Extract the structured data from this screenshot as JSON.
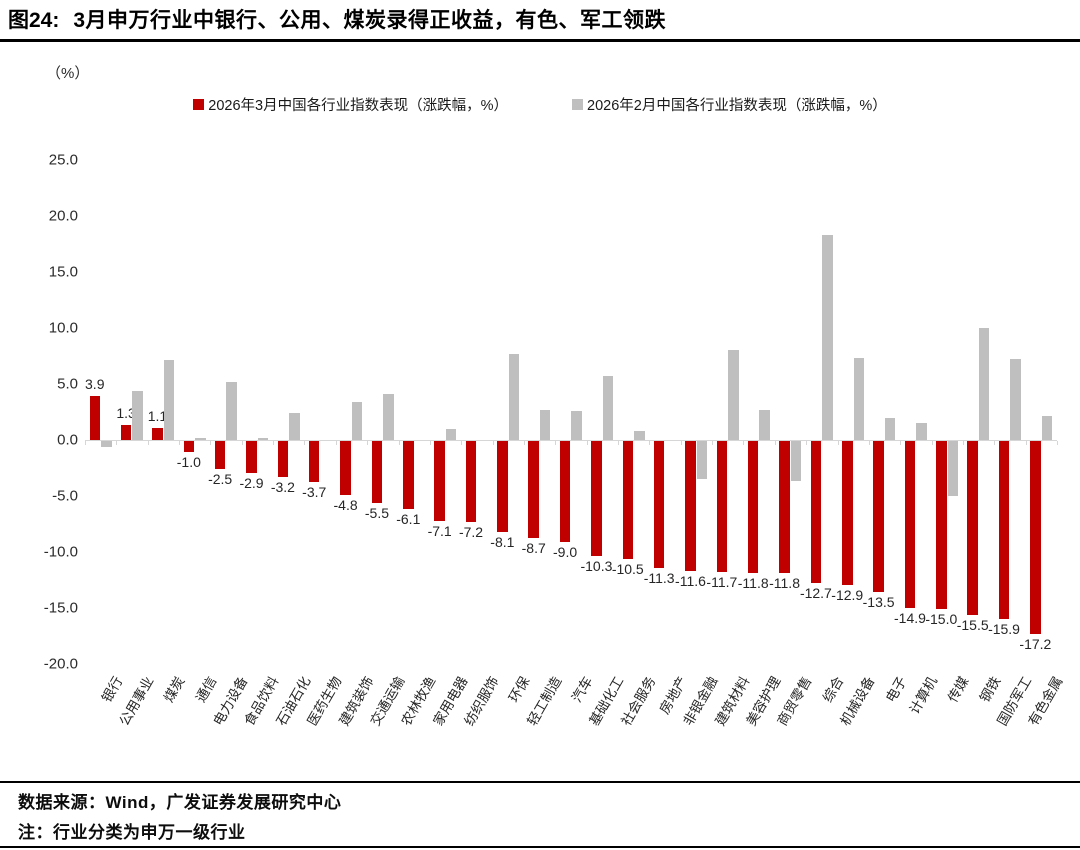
{
  "header": {
    "figure_label": "图24:",
    "title": "3月申万行业中银行、公用、煤炭录得正收益，有色、军工领跌"
  },
  "chart_data": {
    "type": "bar",
    "unit_label": "（%）",
    "title": "3月申万行业中银行、公用、煤炭录得正收益，有色、军工领跌",
    "legend_position": "top",
    "grid": false,
    "ylim": [
      -20,
      25
    ],
    "y_tick_labels": [
      "25.0",
      "20.0",
      "15.0",
      "10.0",
      "5.0",
      "0.0",
      "-5.0",
      "-10.0",
      "-15.0",
      "-20.0"
    ],
    "y_tick_values": [
      25,
      20,
      15,
      10,
      5,
      0,
      -5,
      -10,
      -15,
      -20
    ],
    "categories": [
      "银行",
      "公用事业",
      "煤炭",
      "通信",
      "电力设备",
      "食品饮料",
      "石油石化",
      "医药生物",
      "建筑装饰",
      "交通运输",
      "农林牧渔",
      "家用电器",
      "纺织服饰",
      "环保",
      "轻工制造",
      "汽车",
      "基础化工",
      "社会服务",
      "房地产",
      "非银金融",
      "建筑材料",
      "美容护理",
      "商贸零售",
      "综合",
      "机械设备",
      "电子",
      "计算机",
      "传媒",
      "钢铁",
      "国防军工",
      "有色金属"
    ],
    "series": [
      {
        "name": "2026年3月中国各行业指数表现（涨跌幅，%）",
        "color": "#c00000",
        "data_labels": true,
        "values": [
          3.9,
          1.3,
          1.1,
          -1.0,
          -2.5,
          -2.9,
          -3.2,
          -3.7,
          -4.8,
          -5.5,
          -6.1,
          -7.1,
          -7.2,
          -8.1,
          -8.7,
          -9.0,
          -10.3,
          -10.5,
          -11.3,
          -11.6,
          -11.7,
          -11.8,
          -11.8,
          -12.7,
          -12.9,
          -13.5,
          -14.9,
          -15.0,
          -15.5,
          -15.9,
          -17.2
        ]
      },
      {
        "name": "2026年2月中国各行业指数表现（涨跌幅，%）",
        "color": "#bfbfbf",
        "data_labels": false,
        "values": [
          -0.5,
          4.4,
          7.1,
          0.2,
          5.2,
          0.2,
          2.4,
          0.0,
          3.4,
          4.1,
          0.0,
          1.0,
          0.0,
          7.7,
          2.7,
          2.6,
          5.7,
          0.8,
          0.0,
          -3.4,
          8.0,
          2.7,
          -3.6,
          18.3,
          7.3,
          2.0,
          1.5,
          -4.9,
          10.0,
          7.2,
          2.1
        ]
      }
    ]
  },
  "footer": {
    "source": "数据来源：Wind，广发证券发展研究中心",
    "note": "注：行业分类为申万一级行业"
  }
}
